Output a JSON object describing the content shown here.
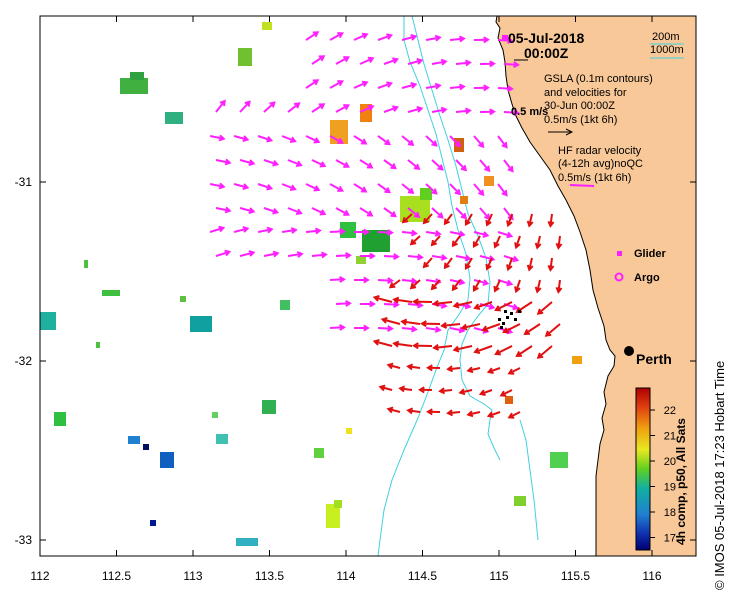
{
  "header": {
    "date": "05-Jul-2018",
    "time": "00:00Z"
  },
  "contour_legend": {
    "line1": "200m",
    "line2": "1000m"
  },
  "gsla_legend": {
    "line1": "GSLA (0.1m contours)",
    "line2": "and velocities for",
    "line3": "30-Jun 00:00Z",
    "line4": "0.5m/s (1kt 6h)",
    "scale_label": "0.5 m/s"
  },
  "hf_legend": {
    "line1": "HF radar velocity",
    "line2": "(4-12h avg)noQC",
    "line3": "0.5m/s (1kt 6h)"
  },
  "markers": {
    "glider": "Glider",
    "argo": "Argo",
    "city": "Perth"
  },
  "colorbar": {
    "title": "4h comp, p50, All Sats",
    "ticks": [
      "22",
      "21",
      "20",
      "19",
      "18",
      "17"
    ],
    "colors": [
      "#c01010",
      "#f08010",
      "#e8e020",
      "#60d020",
      "#10b0a0",
      "#1060d0",
      "#000080"
    ]
  },
  "axes": {
    "x_ticks": [
      "112",
      "112.5",
      "113",
      "113.5",
      "114",
      "114.5",
      "115",
      "115.5",
      "116"
    ],
    "y_ticks": [
      "-31",
      "-32",
      "-33"
    ]
  },
  "footer": {
    "credit": "©  IMOS 05-Jul-2018 17:23 Hobart Time"
  },
  "map_colors": {
    "land": "#f8c898",
    "coast": "#000000",
    "isobath": "#40d0e0",
    "hf_arrow": "#ff20ff",
    "gsla_arrow": "#e01010"
  }
}
